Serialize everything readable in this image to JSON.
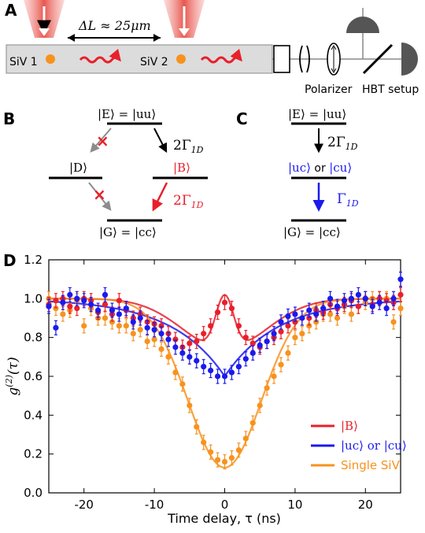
{
  "panel_a": {
    "letter": "A",
    "spacing_label": "ΔL ≈ 25μm",
    "emitter_1": "SiV 1",
    "emitter_2": "SiV 2",
    "polarizer_label": "Polarizer",
    "hbt_label": "HBT setup"
  },
  "panel_b": {
    "letter": "B",
    "excited": "|E⟩ = |uu⟩",
    "dark": "|D⟩",
    "bright": "|B⟩",
    "ground": "|G⟩ = |cc⟩",
    "rate_top": "2Γ",
    "rate_top_sub": "1D",
    "rate_bottom": "2Γ",
    "rate_bottom_sub": "1D",
    "cross": "×"
  },
  "panel_c": {
    "letter": "C",
    "excited": "|E⟩ = |uu⟩",
    "middle_a": "|uc⟩",
    "middle_or": " or ",
    "middle_b": "|cu⟩",
    "ground": "|G⟩ = |cc⟩",
    "rate_top": "2Γ",
    "rate_top_sub": "1D",
    "rate_bottom": "Γ",
    "rate_bottom_sub": "1D"
  },
  "panel_d": {
    "letter": "D",
    "ylabel_main": "g",
    "ylabel_sup": "(2)",
    "ylabel_arg": "(τ)",
    "xlabel": "Time delay, τ (ns)"
  },
  "colors": {
    "red": "#e8202a",
    "blue": "#1a1aee",
    "orange": "#f7921e",
    "gray": "#8c8c8c"
  },
  "chart_data": {
    "type": "scatter",
    "x_range": [
      -25,
      25
    ],
    "ylim": [
      0,
      1.2
    ],
    "x_ticks": [
      -20,
      -10,
      0,
      10,
      20
    ],
    "y_ticks": [
      0.0,
      0.2,
      0.4,
      0.6,
      0.8,
      1.0,
      1.2
    ],
    "y_tick_labels": [
      "0.0",
      "0.2",
      "0.4",
      "0.6",
      "0.8",
      "1.0",
      "1.2"
    ],
    "legend_position": "bottom-right",
    "series": [
      {
        "name": "|B⟩",
        "color": "#e8202a",
        "x": [
          -25,
          -24,
          -23,
          -22,
          -21,
          -20,
          -19,
          -18,
          -17,
          -16,
          -15,
          -14,
          -13,
          -12,
          -11,
          -10,
          -9,
          -8,
          -7,
          -6,
          -5,
          -4,
          -3,
          -2,
          -1,
          0,
          1,
          2,
          3,
          4,
          5,
          6,
          7,
          8,
          9,
          10,
          11,
          12,
          13,
          14,
          15,
          16,
          17,
          18,
          19,
          20,
          21,
          22,
          23,
          24,
          25
        ],
        "y": [
          0.97,
          0.99,
          1.0,
          0.96,
          0.95,
          1.0,
          0.99,
          0.93,
          0.97,
          0.92,
          0.99,
          0.94,
          0.9,
          0.92,
          0.88,
          0.87,
          0.86,
          0.82,
          0.79,
          0.75,
          0.77,
          0.78,
          0.82,
          0.86,
          0.93,
          0.98,
          0.95,
          0.86,
          0.8,
          0.77,
          0.75,
          0.78,
          0.8,
          0.83,
          0.86,
          0.88,
          0.9,
          0.9,
          0.94,
          0.93,
          0.97,
          0.95,
          0.97,
          0.99,
          0.96,
          1.0,
          0.97,
          1.0,
          0.99,
          0.98,
          1.02
        ],
        "fit_dip": 0.74,
        "fit_peak": 1.0
      },
      {
        "name": "|uc⟩ or |cu⟩",
        "color": "#1a1aee",
        "x": [
          -25,
          -24,
          -23,
          -22,
          -21,
          -20,
          -19,
          -18,
          -17,
          -16,
          -15,
          -14,
          -13,
          -12,
          -11,
          -10,
          -9,
          -8,
          -7,
          -6,
          -5,
          -4,
          -3,
          -2,
          -1,
          0,
          1,
          2,
          3,
          4,
          5,
          6,
          7,
          8,
          9,
          10,
          11,
          12,
          13,
          14,
          15,
          16,
          17,
          18,
          19,
          20,
          21,
          22,
          23,
          24,
          25
        ],
        "y": [
          0.96,
          0.85,
          0.98,
          1.02,
          1.0,
          0.99,
          0.97,
          0.94,
          1.02,
          0.94,
          0.92,
          0.95,
          0.88,
          0.9,
          0.85,
          0.84,
          0.82,
          0.79,
          0.75,
          0.72,
          0.7,
          0.68,
          0.65,
          0.63,
          0.6,
          0.6,
          0.62,
          0.65,
          0.69,
          0.72,
          0.76,
          0.78,
          0.82,
          0.88,
          0.91,
          0.92,
          0.9,
          0.94,
          0.92,
          0.95,
          1.0,
          0.96,
          0.99,
          1.0,
          1.02,
          1.0,
          0.96,
          0.98,
          0.95,
          1.0,
          1.1
        ],
        "fit_depth": 0.4,
        "fit_width": 7.5
      },
      {
        "name": "Single SiV",
        "color": "#f7921e",
        "x": [
          -25,
          -24,
          -23,
          -22,
          -21,
          -20,
          -19,
          -18,
          -17,
          -16,
          -15,
          -14,
          -13,
          -12,
          -11,
          -10,
          -9,
          -8,
          -7,
          -6,
          -5,
          -4,
          -3,
          -2,
          -1,
          0,
          1,
          2,
          3,
          4,
          5,
          6,
          7,
          8,
          9,
          10,
          11,
          12,
          13,
          14,
          15,
          16,
          17,
          18,
          19,
          20,
          21,
          22,
          23,
          24,
          25
        ],
        "y": [
          1.0,
          0.95,
          0.92,
          0.94,
          0.99,
          0.86,
          0.95,
          0.9,
          0.9,
          0.88,
          0.86,
          0.86,
          0.82,
          0.84,
          0.78,
          0.79,
          0.74,
          0.7,
          0.62,
          0.56,
          0.45,
          0.34,
          0.26,
          0.21,
          0.17,
          0.16,
          0.18,
          0.22,
          0.28,
          0.36,
          0.45,
          0.54,
          0.6,
          0.66,
          0.72,
          0.8,
          0.82,
          0.86,
          0.88,
          0.92,
          0.92,
          0.9,
          0.96,
          0.92,
          0.96,
          0.98,
          1.0,
          1.0,
          1.0,
          0.88,
          0.95
        ],
        "fit_depth": 0.87,
        "fit_width": 5.2
      }
    ]
  }
}
